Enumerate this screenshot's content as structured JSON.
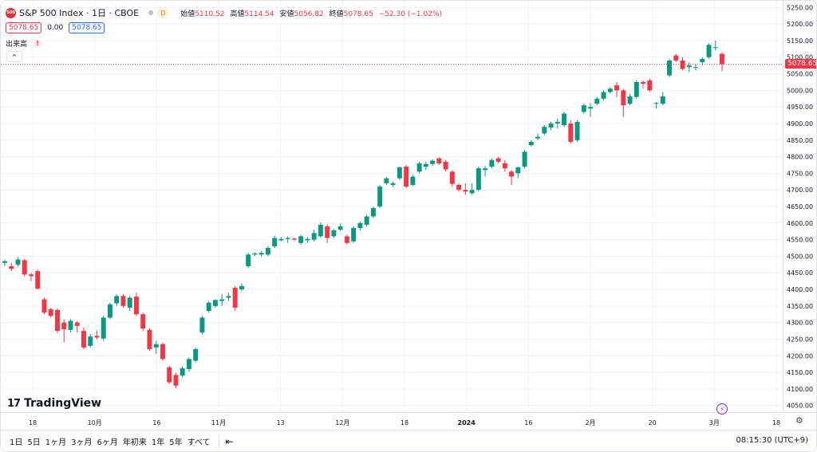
{
  "header": {
    "logo_text": "500",
    "title": "S&P 500 Index · 1日 · CBOE",
    "badge": "D",
    "ohlc": [
      {
        "key": "始値",
        "value": "5110.52"
      },
      {
        "key": "高値",
        "value": "5114.54"
      },
      {
        "key": "安値",
        "value": "5056.82"
      },
      {
        "key": "終値",
        "value": "5078.65"
      }
    ],
    "change": "−52.30 (−1.02%)"
  },
  "trade": {
    "sell": "5078.65",
    "spread": "0.00",
    "buy": "5078.65"
  },
  "volume_label": "出来高",
  "collapse_symbol": "^",
  "warning_symbol": "!",
  "branding": {
    "logo_mark": "17",
    "name": "TradingView"
  },
  "last_price_tag": "5078.65",
  "price_axis": {
    "ticks": [
      "5250.00",
      "5200.00",
      "5150.00",
      "5100.00",
      "5050.00",
      "5000.00",
      "4950.00",
      "4900.00",
      "4850.00",
      "4800.00",
      "4750.00",
      "4700.00",
      "4650.00",
      "4600.00",
      "4550.00",
      "4500.00",
      "4450.00",
      "4400.00",
      "4350.00",
      "4300.00",
      "4250.00",
      "4200.00",
      "4150.00",
      "4100.00",
      "4050.00"
    ]
  },
  "time_axis": {
    "labels": [
      "18",
      "10月",
      "16",
      "11月",
      "13",
      "12月",
      "18",
      "2024",
      "16",
      "2月",
      "20",
      "3月",
      "18"
    ]
  },
  "bottom_bar": {
    "ranges": [
      "1日",
      "5日",
      "1ヶ月",
      "3ヶ月",
      "6ヶ月",
      "年初来",
      "1年",
      "5年",
      "すべて"
    ],
    "clock": "08:15:30 (UTC+9)"
  },
  "colors": {
    "up": "#089981",
    "down": "#f23645",
    "grid": "#f0f3fa",
    "accent": "#2962ff"
  },
  "icons": {
    "settings": "gear-icon",
    "calendar": "calendar-range-icon",
    "bolt": "lightning-icon"
  },
  "chart_data": {
    "type": "candlestick",
    "ylim": [
      4030,
      5270
    ],
    "y_scale": "linear",
    "candles": [
      {
        "o": 4480,
        "h": 4490,
        "l": 4470,
        "c": 4485
      },
      {
        "o": 4470,
        "h": 4480,
        "l": 4455,
        "c": 4462
      },
      {
        "o": 4475,
        "h": 4498,
        "l": 4470,
        "c": 4490
      },
      {
        "o": 4488,
        "h": 4492,
        "l": 4440,
        "c": 4445
      },
      {
        "o": 4445,
        "h": 4450,
        "l": 4425,
        "c": 4440
      },
      {
        "o": 4455,
        "h": 4460,
        "l": 4400,
        "c": 4402
      },
      {
        "o": 4370,
        "h": 4375,
        "l": 4325,
        "c": 4330
      },
      {
        "o": 4340,
        "h": 4345,
        "l": 4315,
        "c": 4320
      },
      {
        "o": 4338,
        "h": 4342,
        "l": 4268,
        "c": 4275
      },
      {
        "o": 4300,
        "h": 4310,
        "l": 4240,
        "c": 4280
      },
      {
        "o": 4278,
        "h": 4310,
        "l": 4270,
        "c": 4305
      },
      {
        "o": 4300,
        "h": 4305,
        "l": 4270,
        "c": 4290
      },
      {
        "o": 4275,
        "h": 4285,
        "l": 4220,
        "c": 4225
      },
      {
        "o": 4230,
        "h": 4265,
        "l": 4225,
        "c": 4258
      },
      {
        "o": 4260,
        "h": 4275,
        "l": 4250,
        "c": 4255
      },
      {
        "o": 4252,
        "h": 4320,
        "l": 4245,
        "c": 4315
      },
      {
        "o": 4315,
        "h": 4360,
        "l": 4310,
        "c": 4355
      },
      {
        "o": 4358,
        "h": 4385,
        "l": 4350,
        "c": 4380
      },
      {
        "o": 4380,
        "h": 4385,
        "l": 4345,
        "c": 4350
      },
      {
        "o": 4345,
        "h": 4380,
        "l": 4335,
        "c": 4375
      },
      {
        "o": 4378,
        "h": 4390,
        "l": 4320,
        "c": 4325
      },
      {
        "o": 4325,
        "h": 4330,
        "l": 4275,
        "c": 4282
      },
      {
        "o": 4278,
        "h": 4282,
        "l": 4215,
        "c": 4220
      },
      {
        "o": 4225,
        "h": 4245,
        "l": 4205,
        "c": 4235
      },
      {
        "o": 4235,
        "h": 4240,
        "l": 4185,
        "c": 4190
      },
      {
        "o": 4165,
        "h": 4170,
        "l": 4115,
        "c": 4120
      },
      {
        "o": 4142,
        "h": 4148,
        "l": 4102,
        "c": 4110
      },
      {
        "o": 4140,
        "h": 4168,
        "l": 4135,
        "c": 4162
      },
      {
        "o": 4160,
        "h": 4195,
        "l": 4152,
        "c": 4190
      },
      {
        "o": 4185,
        "h": 4225,
        "l": 4180,
        "c": 4220
      },
      {
        "o": 4270,
        "h": 4320,
        "l": 4265,
        "c": 4315
      },
      {
        "o": 4335,
        "h": 4365,
        "l": 4330,
        "c": 4360
      },
      {
        "o": 4350,
        "h": 4370,
        "l": 4345,
        "c": 4368
      },
      {
        "o": 4365,
        "h": 4385,
        "l": 4350,
        "c": 4370
      },
      {
        "o": 4375,
        "h": 4390,
        "l": 4365,
        "c": 4380
      },
      {
        "o": 4405,
        "h": 4410,
        "l": 4335,
        "c": 4345
      },
      {
        "o": 4400,
        "h": 4418,
        "l": 4395,
        "c": 4410
      },
      {
        "o": 4470,
        "h": 4510,
        "l": 4465,
        "c": 4505
      },
      {
        "o": 4505,
        "h": 4512,
        "l": 4500,
        "c": 4508
      },
      {
        "o": 4505,
        "h": 4515,
        "l": 4498,
        "c": 4510
      },
      {
        "o": 4505,
        "h": 4530,
        "l": 4500,
        "c": 4525
      },
      {
        "o": 4530,
        "h": 4562,
        "l": 4525,
        "c": 4555
      },
      {
        "o": 4548,
        "h": 4558,
        "l": 4545,
        "c": 4552
      },
      {
        "o": 4552,
        "h": 4560,
        "l": 4540,
        "c": 4555
      },
      {
        "o": 4553,
        "h": 4556,
        "l": 4547,
        "c": 4550
      },
      {
        "o": 4540,
        "h": 4565,
        "l": 4535,
        "c": 4560
      },
      {
        "o": 4548,
        "h": 4558,
        "l": 4540,
        "c": 4552
      },
      {
        "o": 4550,
        "h": 4580,
        "l": 4545,
        "c": 4570
      },
      {
        "o": 4560,
        "h": 4602,
        "l": 4555,
        "c": 4595
      },
      {
        "o": 4590,
        "h": 4596,
        "l": 4540,
        "c": 4555
      },
      {
        "o": 4560,
        "h": 4582,
        "l": 4555,
        "c": 4578
      },
      {
        "o": 4580,
        "h": 4598,
        "l": 4575,
        "c": 4590
      },
      {
        "o": 4560,
        "h": 4565,
        "l": 4535,
        "c": 4540
      },
      {
        "o": 4545,
        "h": 4590,
        "l": 4540,
        "c": 4585
      },
      {
        "o": 4585,
        "h": 4605,
        "l": 4578,
        "c": 4600
      },
      {
        "o": 4595,
        "h": 4625,
        "l": 4590,
        "c": 4620
      },
      {
        "o": 4620,
        "h": 4650,
        "l": 4615,
        "c": 4645
      },
      {
        "o": 4650,
        "h": 4715,
        "l": 4645,
        "c": 4710
      },
      {
        "o": 4720,
        "h": 4738,
        "l": 4715,
        "c": 4735
      },
      {
        "o": 4715,
        "h": 4725,
        "l": 4708,
        "c": 4720
      },
      {
        "o": 4735,
        "h": 4770,
        "l": 4730,
        "c": 4768
      },
      {
        "o": 4770,
        "h": 4775,
        "l": 4705,
        "c": 4710
      },
      {
        "o": 4715,
        "h": 4745,
        "l": 4712,
        "c": 4740
      },
      {
        "o": 4755,
        "h": 4785,
        "l": 4750,
        "c": 4780
      },
      {
        "o": 4770,
        "h": 4785,
        "l": 4760,
        "c": 4778
      },
      {
        "o": 4778,
        "h": 4792,
        "l": 4772,
        "c": 4788
      },
      {
        "o": 4795,
        "h": 4798,
        "l": 4775,
        "c": 4780
      },
      {
        "o": 4785,
        "h": 4790,
        "l": 4755,
        "c": 4762
      },
      {
        "o": 4755,
        "h": 4760,
        "l": 4710,
        "c": 4718
      },
      {
        "o": 4715,
        "h": 4720,
        "l": 4695,
        "c": 4700
      },
      {
        "o": 4700,
        "h": 4720,
        "l": 4685,
        "c": 4695
      },
      {
        "o": 4690,
        "h": 4720,
        "l": 4685,
        "c": 4700
      },
      {
        "o": 4700,
        "h": 4770,
        "l": 4695,
        "c": 4765
      },
      {
        "o": 4760,
        "h": 4772,
        "l": 4740,
        "c": 4765
      },
      {
        "o": 4770,
        "h": 4795,
        "l": 4765,
        "c": 4790
      },
      {
        "o": 4795,
        "h": 4800,
        "l": 4780,
        "c": 4785
      },
      {
        "o": 4780,
        "h": 4790,
        "l": 4755,
        "c": 4765
      },
      {
        "o": 4755,
        "h": 4760,
        "l": 4715,
        "c": 4740
      },
      {
        "o": 4750,
        "h": 4770,
        "l": 4735,
        "c": 4768
      },
      {
        "o": 4770,
        "h": 4820,
        "l": 4765,
        "c": 4815
      },
      {
        "o": 4835,
        "h": 4850,
        "l": 4830,
        "c": 4845
      },
      {
        "o": 4855,
        "h": 4870,
        "l": 4850,
        "c": 4860
      },
      {
        "o": 4870,
        "h": 4895,
        "l": 4865,
        "c": 4890
      },
      {
        "o": 4888,
        "h": 4905,
        "l": 4880,
        "c": 4900
      },
      {
        "o": 4900,
        "h": 4915,
        "l": 4885,
        "c": 4905
      },
      {
        "o": 4895,
        "h": 4935,
        "l": 4890,
        "c": 4930
      },
      {
        "o": 4900,
        "h": 4910,
        "l": 4840,
        "c": 4845
      },
      {
        "o": 4850,
        "h": 4910,
        "l": 4845,
        "c": 4905
      },
      {
        "o": 4935,
        "h": 4960,
        "l": 4930,
        "c": 4955
      },
      {
        "o": 4945,
        "h": 4962,
        "l": 4920,
        "c": 4950
      },
      {
        "o": 4960,
        "h": 4980,
        "l": 4955,
        "c": 4975
      },
      {
        "o": 4975,
        "h": 5000,
        "l": 4970,
        "c": 4995
      },
      {
        "o": 4995,
        "h": 5010,
        "l": 4990,
        "c": 5005
      },
      {
        "o": 5015,
        "h": 5025,
        "l": 4980,
        "c": 5000
      },
      {
        "o": 5000,
        "h": 5005,
        "l": 4920,
        "c": 4955
      },
      {
        "o": 4960,
        "h": 4990,
        "l": 4955,
        "c": 4982
      },
      {
        "o": 4980,
        "h": 5030,
        "l": 4975,
        "c": 5025
      },
      {
        "o": 5025,
        "h": 5030,
        "l": 5005,
        "c": 5020
      },
      {
        "o": 5030,
        "h": 5035,
        "l": 4995,
        "c": 5000
      },
      {
        "o": 4960,
        "h": 4965,
        "l": 4945,
        "c": 4962
      },
      {
        "o": 4960,
        "h": 4995,
        "l": 4955,
        "c": 4982
      },
      {
        "o": 5045,
        "h": 5095,
        "l": 5040,
        "c": 5090
      },
      {
        "o": 5105,
        "h": 5110,
        "l": 5085,
        "c": 5090
      },
      {
        "o": 5090,
        "h": 5100,
        "l": 5060,
        "c": 5065
      },
      {
        "o": 5070,
        "h": 5085,
        "l": 5055,
        "c": 5075
      },
      {
        "o": 5068,
        "h": 5080,
        "l": 5060,
        "c": 5070
      },
      {
        "o": 5085,
        "h": 5100,
        "l": 5075,
        "c": 5095
      },
      {
        "o": 5100,
        "h": 5142,
        "l": 5095,
        "c": 5137
      },
      {
        "o": 5130,
        "h": 5150,
        "l": 5120,
        "c": 5130
      },
      {
        "o": 5110,
        "h": 5115,
        "l": 5057,
        "c": 5079
      }
    ],
    "last": 5078.65
  }
}
